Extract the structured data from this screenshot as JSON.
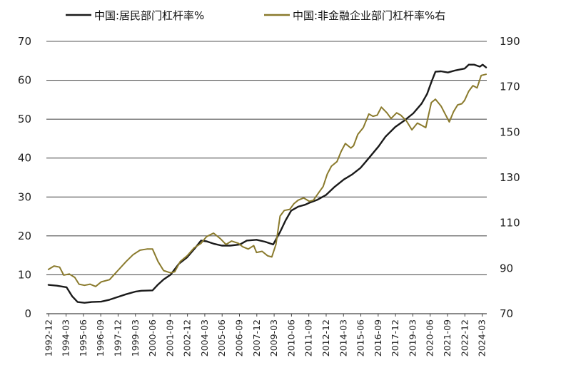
{
  "chart_data": {
    "type": "line",
    "legend": [
      {
        "label": "中国:居民部门杠杆率%",
        "color": "#1a1a1a",
        "axis": "left"
      },
      {
        "label": "中国:非金融企业部门杠杆率%右",
        "color": "#8a7a2c",
        "axis": "right"
      }
    ],
    "legend_placement": "top",
    "grid": true,
    "left_axis": {
      "min": 0,
      "max": 70,
      "ticks": [
        "0",
        "10",
        "20",
        "30",
        "40",
        "50",
        "60",
        "70"
      ]
    },
    "right_axis": {
      "min": 70,
      "max": 190,
      "ticks": [
        "70",
        "90",
        "110",
        "130",
        "150",
        "170",
        "190"
      ]
    },
    "x_range": [
      1992.75,
      2024.5
    ],
    "x_ticks": [
      "1992-12",
      "1994-03",
      "1995-06",
      "1996-09",
      "1997-12",
      "1999-03",
      "2000-06",
      "2001-09",
      "2002-12",
      "2004-03",
      "2005-06",
      "2006-09",
      "2007-12",
      "2009-03",
      "2010-06",
      "2011-09",
      "2012-12",
      "2014-03",
      "2015-06",
      "2016-09",
      "2017-12",
      "2019-03",
      "2020-06",
      "2021-09",
      "2022-12",
      "2024-03"
    ],
    "x_tick_values": [
      1992.92,
      1994.17,
      1995.42,
      1996.67,
      1997.92,
      1999.17,
      2000.42,
      2001.67,
      2002.92,
      2004.17,
      2005.42,
      2006.67,
      2007.92,
      2009.17,
      2010.42,
      2011.67,
      2012.92,
      2014.17,
      2015.42,
      2016.67,
      2017.92,
      2019.17,
      2020.42,
      2021.67,
      2022.92,
      2024.17
    ],
    "series": [
      {
        "name": "中国:居民部门杠杆率%",
        "axis": "left",
        "color": "#1a1a1a",
        "points": [
          [
            1992.9,
            7.4
          ],
          [
            1993.5,
            7.2
          ],
          [
            1994.2,
            6.8
          ],
          [
            1994.6,
            4.5
          ],
          [
            1995.0,
            3.0
          ],
          [
            1995.5,
            2.8
          ],
          [
            1996.0,
            3.0
          ],
          [
            1996.7,
            3.1
          ],
          [
            1997.3,
            3.6
          ],
          [
            1997.9,
            4.3
          ],
          [
            1998.5,
            5.0
          ],
          [
            1999.2,
            5.7
          ],
          [
            1999.6,
            5.9
          ],
          [
            2000.4,
            6.0
          ],
          [
            2000.8,
            7.5
          ],
          [
            2001.2,
            8.8
          ],
          [
            2001.7,
            10.0
          ],
          [
            2002.3,
            12.8
          ],
          [
            2002.9,
            14.5
          ],
          [
            2003.5,
            17.0
          ],
          [
            2003.9,
            18.8
          ],
          [
            2004.3,
            18.6
          ],
          [
            2004.8,
            18.0
          ],
          [
            2005.4,
            17.5
          ],
          [
            2006.0,
            17.5
          ],
          [
            2006.7,
            17.8
          ],
          [
            2007.2,
            18.8
          ],
          [
            2007.9,
            19.0
          ],
          [
            2008.5,
            18.5
          ],
          [
            2009.1,
            17.8
          ],
          [
            2009.6,
            21.0
          ],
          [
            2010.0,
            24.0
          ],
          [
            2010.4,
            26.5
          ],
          [
            2010.9,
            27.5
          ],
          [
            2011.4,
            28.0
          ],
          [
            2011.7,
            28.5
          ],
          [
            2012.3,
            29.3
          ],
          [
            2012.9,
            30.5
          ],
          [
            2013.5,
            32.5
          ],
          [
            2014.2,
            34.5
          ],
          [
            2014.8,
            35.8
          ],
          [
            2015.4,
            37.5
          ],
          [
            2016.0,
            40.0
          ],
          [
            2016.7,
            43.0
          ],
          [
            2017.2,
            45.5
          ],
          [
            2017.9,
            48.0
          ],
          [
            2018.5,
            49.5
          ],
          [
            2019.2,
            51.5
          ],
          [
            2019.8,
            54.0
          ],
          [
            2020.2,
            56.5
          ],
          [
            2020.5,
            59.5
          ],
          [
            2020.8,
            62.2
          ],
          [
            2021.2,
            62.3
          ],
          [
            2021.7,
            62.0
          ],
          [
            2022.2,
            62.5
          ],
          [
            2022.6,
            62.8
          ],
          [
            2022.9,
            63.0
          ],
          [
            2023.2,
            64.0
          ],
          [
            2023.6,
            64.0
          ],
          [
            2024.0,
            63.5
          ],
          [
            2024.2,
            64.0
          ],
          [
            2024.45,
            63.3
          ]
        ]
      },
      {
        "name": "中国:非金融企业部门杠杆率%右",
        "axis": "right",
        "color": "#8a7a2c",
        "points": [
          [
            1992.9,
            89.5
          ],
          [
            1993.3,
            91.0
          ],
          [
            1993.7,
            90.5
          ],
          [
            1994.0,
            87.0
          ],
          [
            1994.4,
            87.5
          ],
          [
            1994.8,
            86.0
          ],
          [
            1995.1,
            83.0
          ],
          [
            1995.5,
            82.5
          ],
          [
            1995.9,
            83.0
          ],
          [
            1996.3,
            82.0
          ],
          [
            1996.7,
            84.0
          ],
          [
            1997.3,
            85.0
          ],
          [
            1997.9,
            89.0
          ],
          [
            1998.5,
            93.0
          ],
          [
            1999.0,
            96.0
          ],
          [
            1999.5,
            98.0
          ],
          [
            2000.0,
            98.5
          ],
          [
            2000.4,
            98.5
          ],
          [
            2000.8,
            93.0
          ],
          [
            2001.2,
            89.0
          ],
          [
            2001.7,
            88.0
          ],
          [
            2002.0,
            88.5
          ],
          [
            2002.4,
            93.0
          ],
          [
            2002.9,
            95.5
          ],
          [
            2003.4,
            99.0
          ],
          [
            2003.9,
            101.0
          ],
          [
            2004.3,
            104.0
          ],
          [
            2004.8,
            105.5
          ],
          [
            2005.3,
            103.0
          ],
          [
            2005.7,
            100.5
          ],
          [
            2006.1,
            102.0
          ],
          [
            2006.6,
            101.0
          ],
          [
            2006.9,
            99.5
          ],
          [
            2007.3,
            98.5
          ],
          [
            2007.7,
            100.0
          ],
          [
            2007.9,
            97.0
          ],
          [
            2008.3,
            97.5
          ],
          [
            2008.7,
            95.5
          ],
          [
            2009.0,
            95.0
          ],
          [
            2009.3,
            100.5
          ],
          [
            2009.6,
            113.0
          ],
          [
            2009.9,
            115.5
          ],
          [
            2010.3,
            116.0
          ],
          [
            2010.6,
            118.5
          ],
          [
            2010.9,
            120.0
          ],
          [
            2011.3,
            121.0
          ],
          [
            2011.7,
            119.5
          ],
          [
            2012.0,
            120.0
          ],
          [
            2012.4,
            123.5
          ],
          [
            2012.7,
            126.0
          ],
          [
            2013.0,
            131.5
          ],
          [
            2013.3,
            135.0
          ],
          [
            2013.7,
            137.0
          ],
          [
            2014.0,
            141.5
          ],
          [
            2014.3,
            145.0
          ],
          [
            2014.7,
            143.0
          ],
          [
            2014.9,
            144.0
          ],
          [
            2015.2,
            149.0
          ],
          [
            2015.6,
            152.0
          ],
          [
            2016.0,
            158.0
          ],
          [
            2016.3,
            157.0
          ],
          [
            2016.6,
            157.5
          ],
          [
            2016.9,
            161.0
          ],
          [
            2017.3,
            158.5
          ],
          [
            2017.6,
            156.0
          ],
          [
            2018.0,
            158.5
          ],
          [
            2018.3,
            157.5
          ],
          [
            2018.7,
            155.0
          ],
          [
            2019.1,
            151.0
          ],
          [
            2019.5,
            154.0
          ],
          [
            2019.8,
            153.0
          ],
          [
            2020.1,
            152.0
          ],
          [
            2020.5,
            163.0
          ],
          [
            2020.8,
            164.5
          ],
          [
            2021.2,
            161.5
          ],
          [
            2021.5,
            158.0
          ],
          [
            2021.8,
            154.5
          ],
          [
            2022.1,
            159.0
          ],
          [
            2022.4,
            162.0
          ],
          [
            2022.7,
            162.5
          ],
          [
            2022.9,
            164.0
          ],
          [
            2023.2,
            168.0
          ],
          [
            2023.5,
            170.5
          ],
          [
            2023.8,
            169.5
          ],
          [
            2024.1,
            175.0
          ],
          [
            2024.45,
            175.5
          ]
        ]
      }
    ]
  }
}
